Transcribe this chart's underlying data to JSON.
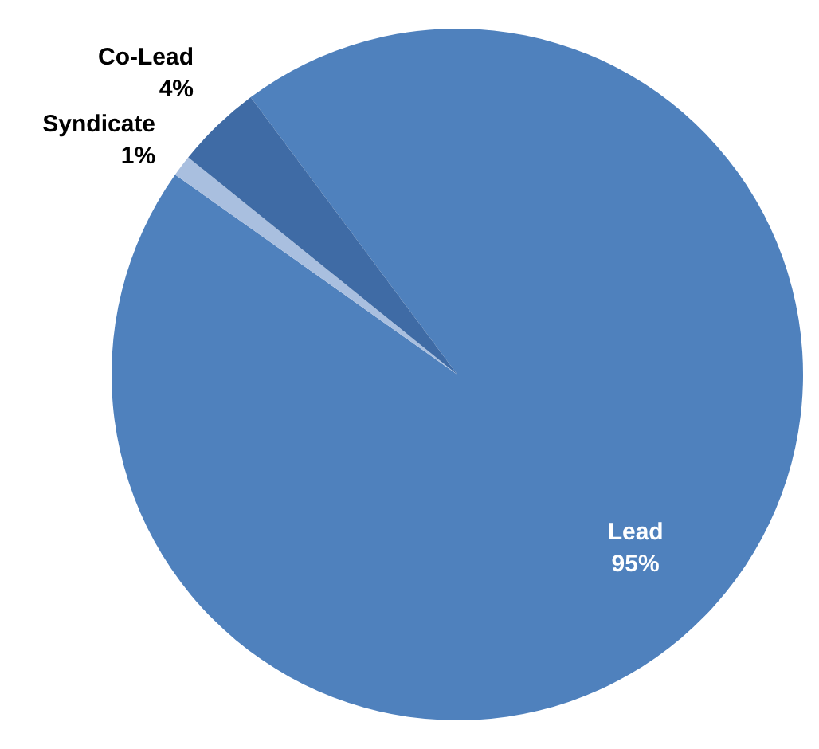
{
  "chart_data": {
    "type": "pie",
    "categories": [
      "Lead",
      "Syndicate",
      "Co-Lead"
    ],
    "values": [
      95,
      1,
      4
    ],
    "colors": [
      "#4f81bd",
      "#a9bfdf",
      "#3f6ba5"
    ],
    "value_labels": [
      "95%",
      "1%",
      "4%"
    ],
    "legend": false
  }
}
